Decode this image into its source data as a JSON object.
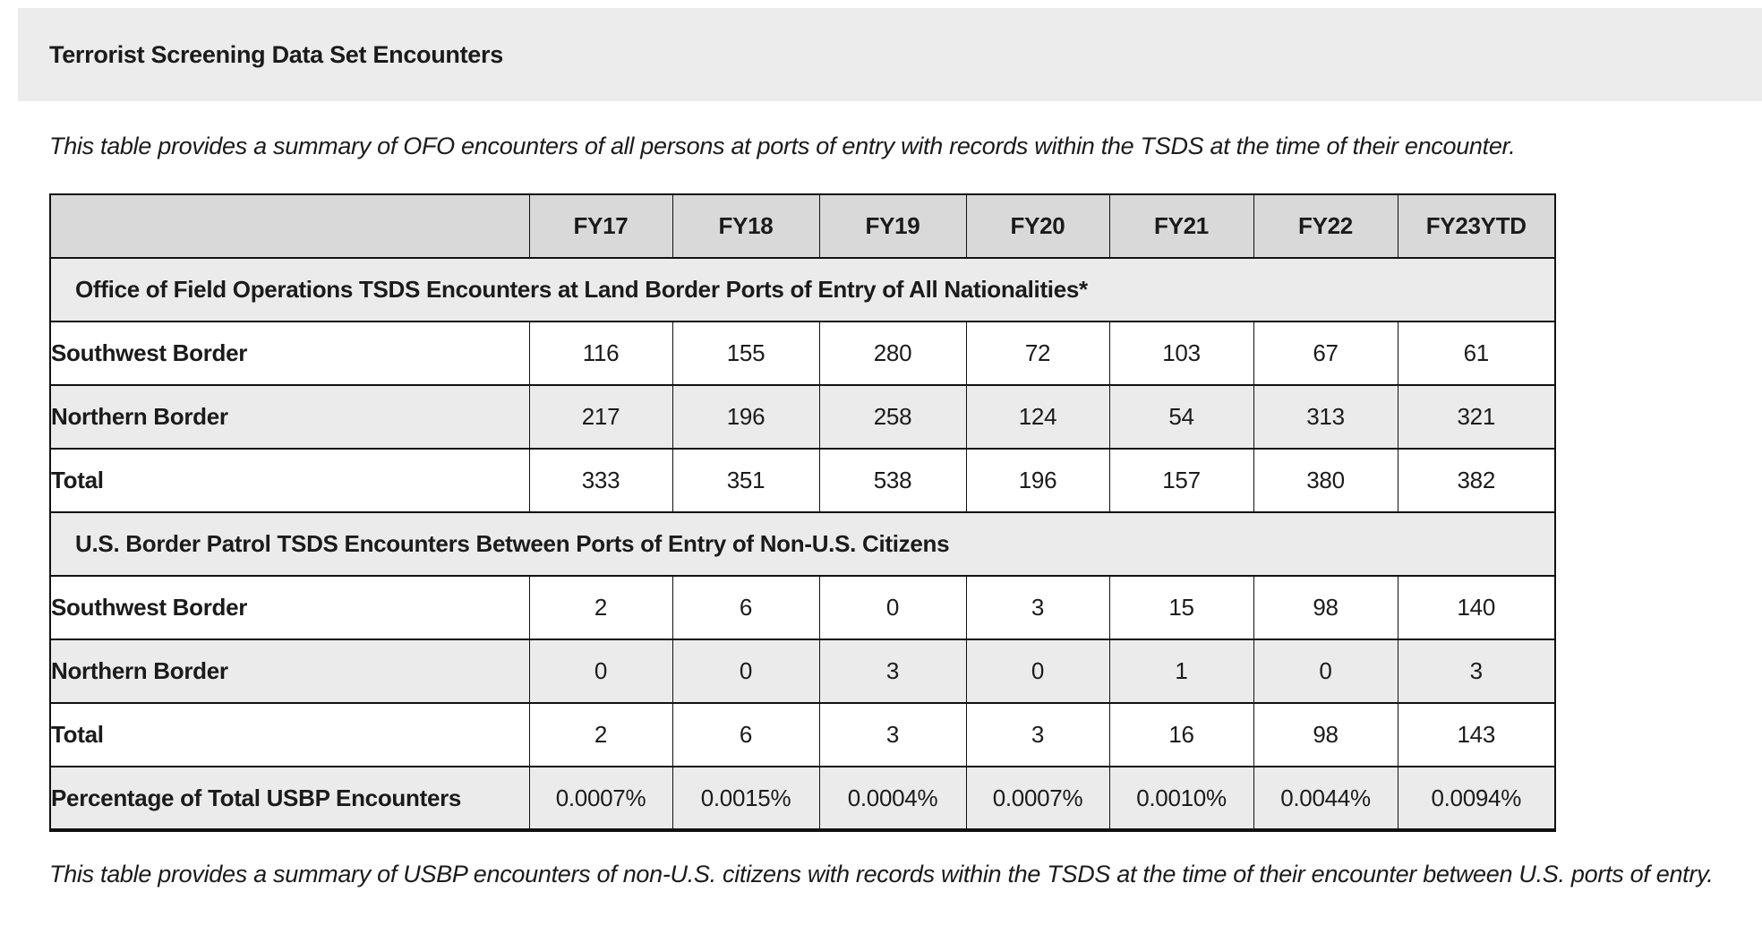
{
  "title_bar": {
    "title": "Terrorist Screening Data Set Encounters"
  },
  "captions": {
    "top": "This table provides a summary of OFO encounters of all persons at ports of entry with records within the TSDS at the time of their encounter.",
    "bottom": "This table provides a summary of USBP encounters of non-U.S. citizens with records within the TSDS at the time of their encounter between U.S. ports of entry."
  },
  "colors": {
    "title_bar_bg": "#ececec",
    "table_header_bg": "#d9d9d9",
    "stripe_bg": "#ebebeb",
    "border": "#111111",
    "text": "#1b1b1b"
  },
  "table": {
    "columns": [
      "",
      "FY17",
      "FY18",
      "FY19",
      "FY20",
      "FY21",
      "FY22",
      "FY23YTD"
    ],
    "sections": [
      {
        "header": "Office of Field Operations TSDS Encounters at Land Border Ports of Entry of All Nationalities*",
        "rows": [
          {
            "label": "Southwest Border",
            "values": [
              "116",
              "155",
              "280",
              "72",
              "103",
              "67",
              "61"
            ]
          },
          {
            "label": "Northern Border",
            "values": [
              "217",
              "196",
              "258",
              "124",
              "54",
              "313",
              "321"
            ]
          },
          {
            "label": "Total",
            "values": [
              "333",
              "351",
              "538",
              "196",
              "157",
              "380",
              "382"
            ]
          }
        ]
      },
      {
        "header": "U.S. Border Patrol TSDS Encounters Between Ports of Entry of Non-U.S. Citizens",
        "rows": [
          {
            "label": "Southwest Border",
            "values": [
              "2",
              "6",
              "0",
              "3",
              "15",
              "98",
              "140"
            ]
          },
          {
            "label": "Northern Border",
            "values": [
              "0",
              "0",
              "3",
              "0",
              "1",
              "0",
              "3"
            ]
          },
          {
            "label": "Total",
            "values": [
              "2",
              "6",
              "3",
              "3",
              "16",
              "98",
              "143"
            ]
          }
        ]
      }
    ],
    "footer_row": {
      "label": "Percentage of Total USBP Encounters",
      "values": [
        "0.0007%",
        "0.0015%",
        "0.0004%",
        "0.0007%",
        "0.0010%",
        "0.0044%",
        "0.0094%"
      ]
    }
  }
}
